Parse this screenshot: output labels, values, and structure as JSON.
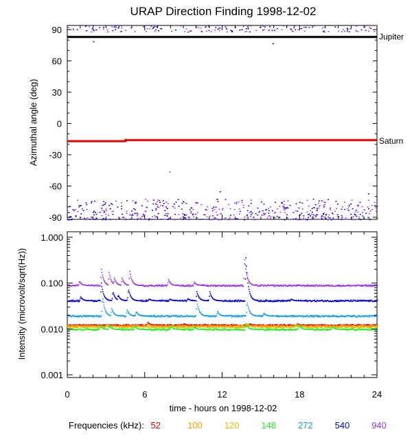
{
  "title": "URAP Direction Finding  1998-12-02",
  "frequencies_label": "Frequencies (kHz):",
  "colors": {
    "jupiter": "#000000",
    "saturn": "#ee0000",
    "f52": "#e00000",
    "f100": "#ff9900",
    "f120": "#ddbb00",
    "f148": "#22ee22",
    "f272": "#1199ee",
    "f540": "#0000dd",
    "f940": "#9933ee"
  },
  "chart_data": [
    {
      "type": "scatter",
      "title": "URAP Direction Finding  1998-12-02",
      "xlabel": "",
      "ylabel": "Azimuthal angle (deg)",
      "xlim": [
        0,
        24
      ],
      "ylim": [
        -92,
        94
      ],
      "yticks": [
        90,
        60,
        30,
        0,
        -30,
        -60,
        -90
      ],
      "ytick_labels": [
        "90",
        "60",
        "30",
        "0",
        "-30",
        "-60",
        "-90"
      ],
      "series": [
        {
          "name": "Jupiter",
          "x": [
            0,
            24
          ],
          "values": [
            83,
            83
          ]
        },
        {
          "name": "Saturn",
          "x": [
            0,
            4.5,
            4.5,
            24
          ],
          "values": [
            -17,
            -17,
            -16,
            -16
          ]
        }
      ],
      "scatter_bands": [
        {
          "y_range": [
            -92,
            -72
          ],
          "colors": [
            "f540",
            "f940"
          ]
        },
        {
          "y_range": [
            85,
            94
          ],
          "colors": [
            "f540",
            "f940"
          ]
        }
      ],
      "annotations": [
        "Jupiter",
        "Saturn"
      ]
    },
    {
      "type": "line",
      "xlabel": "time - hours on 1998-12-02",
      "ylabel": "Intensity (microvolt/sqrt(Hz))",
      "xlim": [
        0,
        24
      ],
      "xticks": [
        0,
        6,
        12,
        18,
        24
      ],
      "xtick_labels": [
        "0",
        "6",
        "12",
        "18",
        "24"
      ],
      "yscale": "log",
      "ylim": [
        0.001,
        1.0
      ],
      "yticks": [
        0.001,
        0.01,
        0.1,
        1.0
      ],
      "ytick_labels": [
        "0.001",
        "0.010",
        "0.100",
        "1.000"
      ],
      "series": [
        {
          "name": "52",
          "baseline": 0.012,
          "peaks": [
            [
              3.0,
              0.0125
            ],
            [
              6.2,
              0.014
            ],
            [
              9.0,
              0.013
            ],
            [
              14.1,
              0.013
            ],
            [
              17.8,
              0.013
            ]
          ]
        },
        {
          "name": "100",
          "baseline": 0.0115,
          "peaks": [
            [
              3.0,
              0.0125
            ],
            [
              6.2,
              0.013
            ],
            [
              13.8,
              0.013
            ],
            [
              17.8,
              0.0125
            ]
          ]
        },
        {
          "name": "120",
          "baseline": 0.011,
          "peaks": [
            [
              3.0,
              0.012
            ],
            [
              5.2,
              0.012
            ],
            [
              13.9,
              0.013
            ],
            [
              17.6,
              0.012
            ]
          ]
        },
        {
          "name": "148",
          "baseline": 0.0097,
          "peaks": [
            [
              2.5,
              0.012
            ],
            [
              3.2,
              0.012
            ],
            [
              5.2,
              0.0115
            ],
            [
              8.0,
              0.0115
            ],
            [
              9.8,
              0.011
            ],
            [
              13.8,
              0.013
            ],
            [
              17.9,
              0.0125
            ],
            [
              20.5,
              0.0115
            ],
            [
              24.0,
              0.012
            ]
          ]
        },
        {
          "name": "272",
          "baseline": 0.019,
          "peaks": [
            [
              2.7,
              0.05
            ],
            [
              3.4,
              0.028
            ],
            [
              4.6,
              0.026
            ],
            [
              5.3,
              0.024
            ],
            [
              10.0,
              0.04
            ],
            [
              11.6,
              0.024
            ],
            [
              13.9,
              0.04
            ],
            [
              15.2,
              0.022
            ]
          ]
        },
        {
          "name": "540",
          "baseline": 0.041,
          "peaks": [
            [
              1.0,
              0.05
            ],
            [
              2.6,
              0.1
            ],
            [
              3.5,
              0.065
            ],
            [
              3.9,
              0.055
            ],
            [
              4.7,
              0.075
            ],
            [
              6.3,
              0.045
            ],
            [
              7.9,
              0.045
            ],
            [
              9.3,
              0.046
            ],
            [
              10.0,
              0.065
            ],
            [
              11.0,
              0.065
            ],
            [
              13.8,
              0.36
            ],
            [
              17.3,
              0.045
            ]
          ]
        },
        {
          "name": "940",
          "baseline": 0.088,
          "peaks": [
            [
              0.9,
              0.11
            ],
            [
              2.6,
              0.2
            ],
            [
              3.2,
              0.17
            ],
            [
              3.6,
              0.13
            ],
            [
              4.2,
              0.13
            ],
            [
              4.8,
              0.18
            ],
            [
              7.8,
              0.12
            ],
            [
              9.8,
              0.105
            ],
            [
              13.7,
              0.38
            ]
          ]
        }
      ]
    }
  ],
  "frequencies": [
    "52",
    "100",
    "120",
    "148",
    "272",
    "540",
    "940"
  ]
}
